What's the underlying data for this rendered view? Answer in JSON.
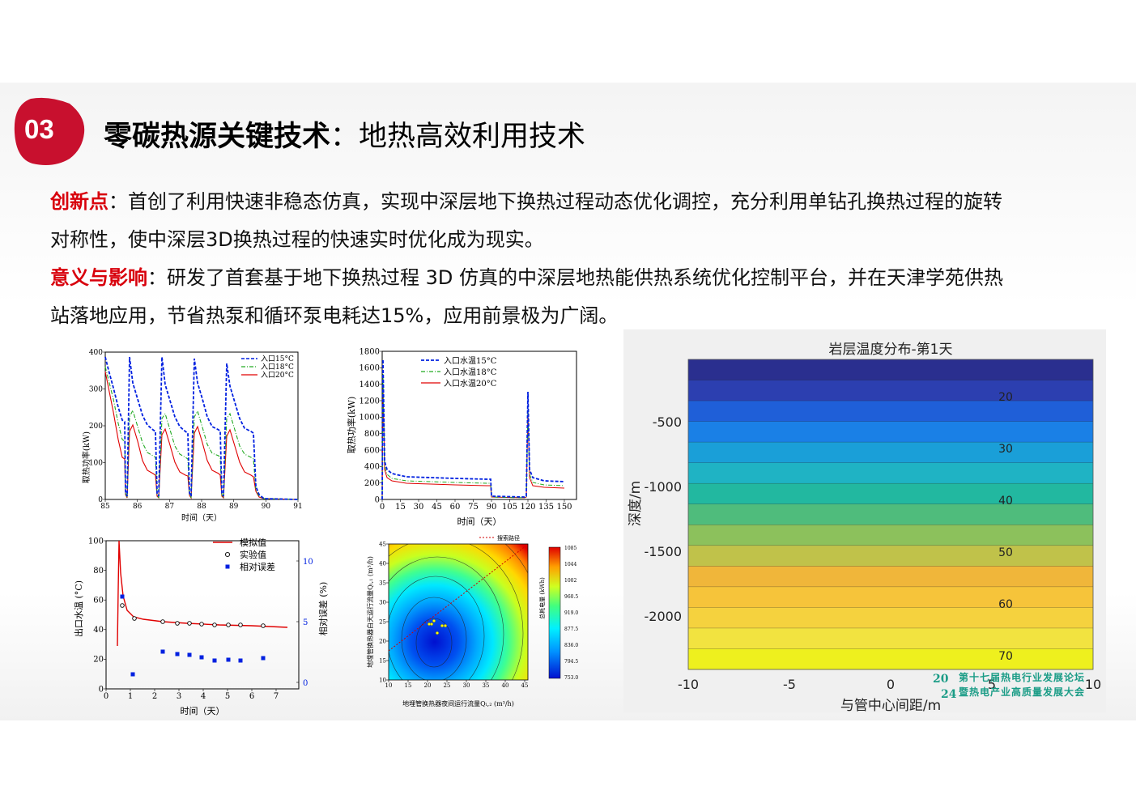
{
  "badge": {
    "number": "03",
    "color": "#c8102e"
  },
  "title": {
    "bold": "零碳热源关键技术",
    "colon": "：",
    "rest": "地热高效利用技术"
  },
  "paragraph1": {
    "label": "创新点",
    "colon": "：",
    "line1": "首创了利用快速非稳态仿真，实现中深层地下换热过程动态优化调控，充分利用单钻孔换热过程的旋转",
    "line2": "对称性，使中深层3D换热过程的快速实时优化成为现实。"
  },
  "paragraph2": {
    "label": "意义与影响",
    "colon": "：",
    "line1": "研发了首套基于地下换热过程 3D 仿真的中深层地热能供热系统优化控制平台，并在天津学苑供热",
    "line2": "站落地应用，节省热泵和循环泵电耗达15%，应用前景极为广阔。"
  },
  "chart1": {
    "ylabel": "取热功率(kW)",
    "xlabel": "时间（天）",
    "xticks": [
      "85",
      "86",
      "87",
      "88",
      "89",
      "90",
      "91"
    ],
    "yticks": [
      "0",
      "100",
      "200",
      "300",
      "400"
    ],
    "legend": [
      "入口15°C",
      "入口18°C",
      "入口20°C"
    ]
  },
  "chart2": {
    "ylabel": "取热功率(kW)",
    "xlabel": "时间（天）",
    "xticks": [
      "0",
      "15",
      "30",
      "45",
      "60",
      "75",
      "90",
      "105",
      "120",
      "135",
      "150"
    ],
    "yticks": [
      "0",
      "200",
      "400",
      "600",
      "800",
      "1000",
      "1200",
      "1400",
      "1600",
      "1800"
    ],
    "legend": [
      "入口水温15°C",
      "入口水温18°C",
      "入口水温20°C"
    ]
  },
  "chart3": {
    "ylabel": "出口水温 (°C)",
    "ylabel2": "相对误差 (%)",
    "xlabel": "时间（天）",
    "xticks": [
      "0",
      "1",
      "2",
      "3",
      "4",
      "5",
      "6",
      "7"
    ],
    "yticks": [
      "0",
      "20",
      "40",
      "60",
      "80",
      "100"
    ],
    "y2ticks": [
      "0",
      "5",
      "10"
    ],
    "legend": [
      "模拟值",
      "实验值",
      "相对误差"
    ]
  },
  "chart4": {
    "ylabel": "地埋管换热器白天运行流量Qₗ,₁ (m³/h)",
    "xlabel": "地埋管换热器夜间运行流量Qₗ,₂ (m³/h)",
    "xticks": [
      "10",
      "15",
      "20",
      "25",
      "30",
      "35",
      "40",
      "45"
    ],
    "yticks": [
      "10",
      "15",
      "20",
      "25",
      "30",
      "35",
      "40",
      "45"
    ],
    "legend": "搜索路径",
    "colorbar_label": "总耗电量 (kWh)",
    "colorbar_ticks": [
      "1085",
      "1044",
      "1002",
      "960.5",
      "919.0",
      "877.5",
      "836.0",
      "794.5",
      "753.0"
    ]
  },
  "chart5": {
    "title": "岩层温度分布-第1天",
    "ylabel": "深度/m",
    "xlabel": "与管中心间距/m",
    "xticks": [
      "-10",
      "-5",
      "0",
      "5",
      "10"
    ],
    "yticks": [
      "-500",
      "-1000",
      "-1500",
      "-2000"
    ],
    "contour_labels": [
      "20",
      "30",
      "40",
      "50",
      "60",
      "70"
    ]
  },
  "logo": {
    "year_top": "20",
    "year_bottom": "24",
    "line1": "第十七届热电行业发展论坛",
    "line2": "暨热电产业高质量发展大会"
  }
}
